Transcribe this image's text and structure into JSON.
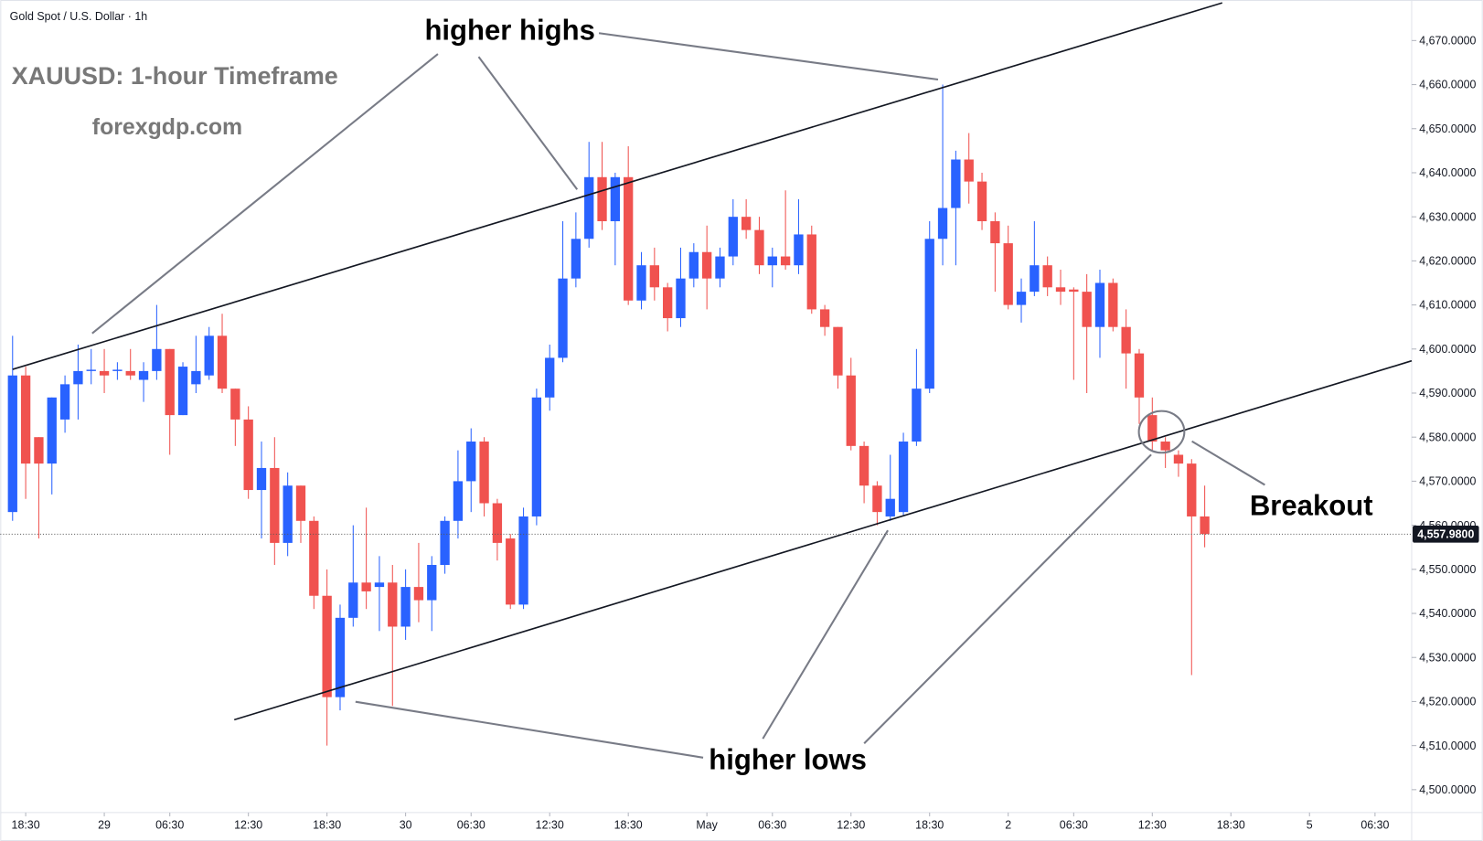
{
  "chart_data": {
    "type": "candlestick",
    "title": "Gold Spot / U.S. Dollar · 1h",
    "annotations": [
      "XAUUSD: 1-hour Timeframe",
      "forexgdp.com",
      "higher highs",
      "higher lows",
      "Breakout"
    ],
    "up_color": "#2962ff",
    "down_color": "#f0524f",
    "xlim": [
      -0.94,
      106.8
    ],
    "xticks": [
      {
        "value": 1,
        "label": "18:30"
      },
      {
        "value": 7,
        "label": "29"
      },
      {
        "value": 12,
        "label": "06:30"
      },
      {
        "value": 18,
        "label": "12:30"
      },
      {
        "value": 24,
        "label": "18:30"
      },
      {
        "value": 30,
        "label": "30"
      },
      {
        "value": 35,
        "label": "06:30"
      },
      {
        "value": 41,
        "label": "12:30"
      },
      {
        "value": 47,
        "label": "18:30"
      },
      {
        "value": 53,
        "label": "May"
      },
      {
        "value": 58,
        "label": "06:30"
      },
      {
        "value": 64,
        "label": "12:30"
      },
      {
        "value": 70,
        "label": "18:30"
      },
      {
        "value": 76,
        "label": "2"
      },
      {
        "value": 81,
        "label": "06:30"
      },
      {
        "value": 87,
        "label": "12:30"
      },
      {
        "value": 93,
        "label": "18:30"
      },
      {
        "value": 99,
        "label": "5"
      },
      {
        "value": 104,
        "label": "06:30"
      }
    ],
    "ylim": [
      4494.8,
      4679.2
    ],
    "yticks": [
      {
        "value": 4500,
        "label": "4,500.0000"
      },
      {
        "value": 4510,
        "label": "4,510.0000"
      },
      {
        "value": 4520,
        "label": "4,520.0000"
      },
      {
        "value": 4530,
        "label": "4,530.0000"
      },
      {
        "value": 4540,
        "label": "4,540.0000"
      },
      {
        "value": 4550,
        "label": "4,550.0000"
      },
      {
        "value": 4560,
        "label": "4,560.0000"
      },
      {
        "value": 4570,
        "label": "4,570.0000"
      },
      {
        "value": 4580,
        "label": "4,580.0000"
      },
      {
        "value": 4590,
        "label": "4,590.0000"
      },
      {
        "value": 4600,
        "label": "4,600.0000"
      },
      {
        "value": 4610,
        "label": "4,610.0000"
      },
      {
        "value": 4620,
        "label": "4,620.0000"
      },
      {
        "value": 4630,
        "label": "4,630.0000"
      },
      {
        "value": 4640,
        "label": "4,640.0000"
      },
      {
        "value": 4650,
        "label": "4,650.0000"
      },
      {
        "value": 4660,
        "label": "4,660.0000"
      },
      {
        "value": 4670,
        "label": "4,670.0000"
      }
    ],
    "last_price": {
      "value": 4557.98,
      "label": "4,557.9800"
    },
    "open": [
      4563,
      4594,
      4580,
      4574,
      4584,
      4592,
      4595,
      4595,
      4595,
      4595,
      4593,
      4595,
      4600,
      4585,
      4592,
      4594,
      4603,
      4591,
      4584,
      4568,
      4573,
      4556,
      4569,
      4561,
      4544,
      4521,
      4539,
      4547,
      4546,
      4547,
      4537,
      4546,
      4543,
      4551,
      4561,
      4570,
      4579,
      4565,
      4557,
      4542,
      4562,
      4589,
      4598,
      4616,
      4625,
      4639,
      4629,
      4639,
      4611,
      4619,
      4614,
      4607,
      4616,
      4622,
      4616,
      4621,
      4630,
      4627,
      4619,
      4621,
      4619,
      4626,
      4609,
      4605,
      4594,
      4578,
      4569,
      4562,
      4563,
      4579,
      4591,
      4625,
      4632,
      4643,
      4638,
      4629,
      4624,
      4610,
      4613,
      4619,
      4614,
      4613.5,
      4613,
      4605,
      4615,
      4605,
      4599,
      4585,
      4579,
      4576,
      4574,
      4562
    ],
    "high": [
      4603,
      4596,
      4580,
      4589,
      4594,
      4601,
      4600,
      4600,
      4597,
      4600,
      4597,
      4610,
      4600,
      4597,
      4603,
      4605,
      4608,
      4591,
      4587,
      4579,
      4580,
      4572,
      4569,
      4562,
      4550,
      4542,
      4560,
      4564,
      4553,
      4551,
      4550,
      4556,
      4553,
      4562,
      4577,
      4582,
      4580,
      4566,
      4558,
      4564,
      4591,
      4601,
      4629,
      4631,
      4647,
      4647,
      4640,
      4646,
      4622,
      4623,
      4615,
      4623,
      4624,
      4628,
      4623,
      4634,
      4634,
      4630,
      4623,
      4636,
      4634,
      4628,
      4610,
      4605,
      4598,
      4579,
      4570,
      4576,
      4581,
      4600,
      4629,
      4660,
      4645,
      4649,
      4640,
      4631,
      4628,
      4616,
      4629,
      4621,
      4618,
      4614,
      4617,
      4618,
      4616,
      4609,
      4600,
      4589,
      4580,
      4577,
      4575,
      4569
    ],
    "low": [
      4561,
      4566,
      4557,
      4567,
      4581,
      4584,
      4592,
      4590,
      4593,
      4593,
      4588,
      4593,
      4576,
      4585,
      4590,
      4593,
      4590,
      4578,
      4566,
      4557,
      4551,
      4553,
      4556,
      4541,
      4510,
      4518,
      4537,
      4541,
      4536,
      4519,
      4534,
      4538,
      4536,
      4549,
      4557,
      4563,
      4562,
      4552,
      4541,
      4541,
      4560,
      4586,
      4597,
      4614,
      4623,
      4627,
      4619,
      4610,
      4609,
      4611,
      4604,
      4605,
      4614,
      4609,
      4614,
      4619,
      4625,
      4617,
      4614,
      4618,
      4617,
      4608,
      4603,
      4591,
      4577,
      4565,
      4560,
      4561,
      4562,
      4578,
      4590,
      4619,
      4619,
      4633,
      4627,
      4613,
      4609,
      4606,
      4612,
      4612,
      4610,
      4593,
      4590,
      4598,
      4604,
      4591,
      4583,
      4577,
      4573,
      4571,
      4526,
      4555
    ],
    "close": [
      4594,
      4574,
      4574,
      4589,
      4592,
      4595,
      4595.3,
      4594,
      4595.3,
      4594,
      4595,
      4600,
      4585,
      4596,
      4595,
      4603,
      4591,
      4584,
      4568,
      4573,
      4556,
      4569,
      4561,
      4544,
      4521,
      4539,
      4547,
      4545,
      4547,
      4537,
      4546,
      4543,
      4551,
      4561,
      4570,
      4579,
      4565,
      4556,
      4542,
      4562,
      4589,
      4598,
      4616,
      4625,
      4639,
      4629,
      4639,
      4611,
      4619,
      4614,
      4607,
      4616,
      4622,
      4616,
      4621,
      4630,
      4627,
      4619,
      4621,
      4619,
      4626,
      4609,
      4605,
      4594,
      4578,
      4569,
      4563,
      4566,
      4579,
      4591,
      4625,
      4632,
      4643,
      4638,
      4629,
      4624,
      4610,
      4613,
      4619,
      4614,
      4613,
      4613,
      4605,
      4615,
      4605,
      4599,
      4589,
      4579,
      4577,
      4574,
      4562,
      4558
    ]
  }
}
